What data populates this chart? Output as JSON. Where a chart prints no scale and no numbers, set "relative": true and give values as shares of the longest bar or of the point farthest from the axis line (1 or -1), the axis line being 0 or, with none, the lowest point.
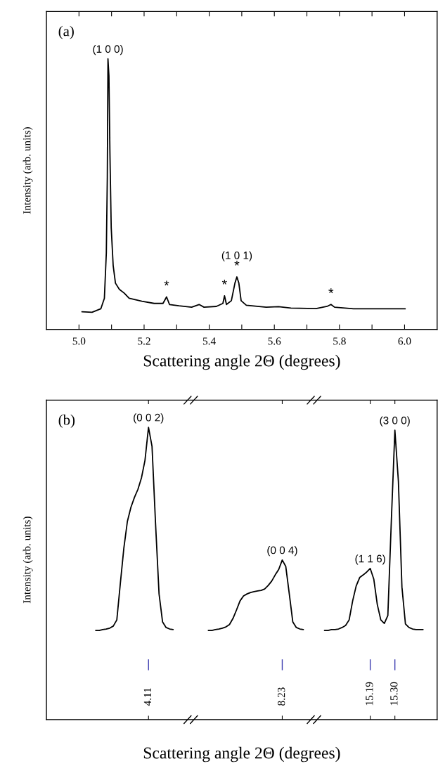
{
  "chart_data": [
    {
      "type": "line",
      "relative": true,
      "color": "#000000",
      "xlabel": "Scattering angle 2Θ (degrees)",
      "ylabel": "Intensity (arb. units)",
      "tick_labels": "x",
      "xlim": [
        4.9,
        6.1
      ],
      "xticks": [
        {
          "value": 5.0,
          "label": "5.0"
        },
        {
          "value": 5.1,
          "label": null
        },
        {
          "value": 5.2,
          "label": "5.2"
        },
        {
          "value": 5.3,
          "label": null
        },
        {
          "value": 5.4,
          "label": "5.4"
        },
        {
          "value": 5.5,
          "label": null
        },
        {
          "value": 5.6,
          "label": "5.6"
        },
        {
          "value": 5.7,
          "label": null
        },
        {
          "value": 5.8,
          "label": "5.8"
        },
        {
          "value": 5.9,
          "label": null
        },
        {
          "value": 6.0,
          "label": "6.0"
        }
      ],
      "x": [
        5.009,
        5.04,
        5.067,
        5.078,
        5.084,
        5.087,
        5.089,
        5.092,
        5.095,
        5.099,
        5.105,
        5.112,
        5.124,
        5.139,
        5.154,
        5.193,
        5.231,
        5.258,
        5.269,
        5.278,
        5.307,
        5.346,
        5.369,
        5.384,
        5.422,
        5.442,
        5.447,
        5.453,
        5.468,
        5.479,
        5.485,
        5.491,
        5.498,
        5.514,
        5.575,
        5.613,
        5.651,
        5.728,
        5.762,
        5.774,
        5.785,
        5.843,
        5.919,
        6.002
      ],
      "values": [
        0.065,
        0.063,
        0.076,
        0.115,
        0.283,
        0.563,
        1.0,
        0.936,
        0.656,
        0.376,
        0.236,
        0.171,
        0.148,
        0.134,
        0.115,
        0.104,
        0.096,
        0.096,
        0.12,
        0.092,
        0.087,
        0.082,
        0.092,
        0.082,
        0.085,
        0.096,
        0.124,
        0.092,
        0.106,
        0.171,
        0.194,
        0.171,
        0.106,
        0.089,
        0.082,
        0.084,
        0.079,
        0.077,
        0.085,
        0.092,
        0.082,
        0.076,
        0.076,
        0.076
      ],
      "annotations": [
        "(a)",
        {
          "text": "(1 0 0)",
          "x": 5.089,
          "y": 1.0
        },
        {
          "text": "*",
          "x": 5.269,
          "y": 0.12
        },
        {
          "text": "*",
          "x": 5.447,
          "y": 0.124
        },
        {
          "text": "*",
          "x": 5.485,
          "y": 0.194
        },
        {
          "text": "(1 0 1)",
          "x": 5.485,
          "y": 0.194
        },
        {
          "text": "*",
          "x": 5.774,
          "y": 0.092
        }
      ]
    },
    {
      "type": "line",
      "relative": true,
      "color": "#000000",
      "xlabel": "Scattering angle 2Θ (degrees)",
      "ylabel": "Intensity (arb. units)",
      "tick_labels": "x",
      "categories": [
        null,
        null,
        null,
        null,
        null,
        null,
        null,
        null,
        null,
        null,
        null,
        null,
        null,
        null,
        null,
        null,
        null,
        null,
        null,
        null,
        null,
        null,
        null,
        null,
        null,
        null,
        null,
        null,
        "4.11",
        null,
        null,
        null,
        null,
        null,
        null,
        null,
        null,
        null,
        null,
        null,
        null,
        null,
        null,
        null,
        null,
        null,
        null,
        null,
        null,
        null,
        null,
        null,
        null,
        null,
        null,
        null,
        null,
        null,
        null,
        null,
        null,
        null,
        null,
        null,
        null,
        null,
        "8.23",
        null,
        null,
        null,
        null,
        null,
        null,
        null,
        null,
        null,
        null,
        null,
        null,
        null,
        null,
        null,
        null,
        null,
        null,
        null,
        null,
        null,
        null,
        null,
        null,
        "15.19",
        null,
        null,
        null,
        null,
        null,
        null,
        "15.30",
        null,
        null,
        null,
        null,
        null,
        null,
        null,
        null,
        null,
        null,
        null
      ],
      "values": [
        null,
        null,
        null,
        null,
        null,
        null,
        null,
        null,
        null,
        null,
        null,
        null,
        null,
        0.305,
        0.305,
        0.308,
        0.31,
        0.313,
        0.32,
        0.341,
        0.466,
        0.587,
        0.678,
        0.726,
        0.76,
        0.788,
        0.827,
        0.887,
        1.0,
        0.935,
        0.671,
        0.43,
        0.334,
        0.315,
        0.31,
        0.308,
        null,
        null,
        null,
        null,
        null,
        null,
        null,
        null,
        null,
        0.305,
        0.305,
        0.308,
        0.31,
        0.313,
        0.317,
        0.325,
        0.346,
        0.375,
        0.406,
        0.423,
        0.43,
        0.435,
        0.438,
        0.44,
        0.442,
        0.447,
        0.459,
        0.474,
        0.495,
        0.514,
        0.546,
        0.524,
        0.43,
        0.334,
        0.315,
        0.31,
        0.308,
        null,
        null,
        null,
        null,
        null,
        0.305,
        0.305,
        0.308,
        0.308,
        0.31,
        0.315,
        0.322,
        0.341,
        0.406,
        0.457,
        0.486,
        0.495,
        0.505,
        0.517,
        0.481,
        0.394,
        0.341,
        0.329,
        0.356,
        0.683,
        0.99,
        0.815,
        0.454,
        0.327,
        0.315,
        0.31,
        0.308,
        0.308,
        0.308,
        null,
        null,
        null
      ],
      "annotations": [
        "(b)",
        {
          "text": "(0 0 2)",
          "x": "4.11",
          "y": 1.0
        },
        {
          "text": "(0 0 4)",
          "x": "8.23",
          "y": 0.546
        },
        {
          "text": "(1 1 6)",
          "x": "15.19",
          "y": 0.517
        },
        {
          "text": "(3 0 0)",
          "x": "15.30",
          "y": 0.99
        }
      ]
    }
  ]
}
